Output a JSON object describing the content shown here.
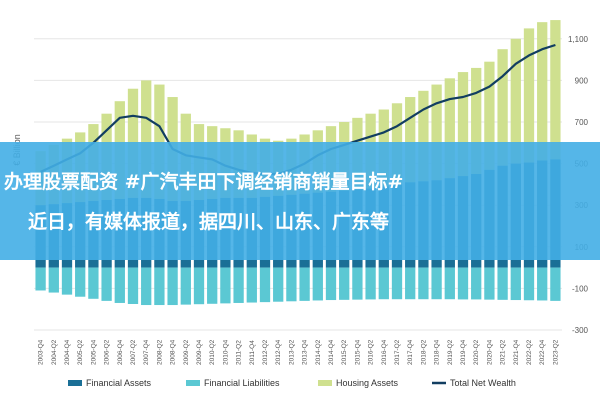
{
  "colors": {
    "financial_assets": "#1a6f96",
    "financial_liabilities": "#5bc8d3",
    "housing_assets": "#cfe08f",
    "net_wealth": "#123e61",
    "banner": "#43aee6",
    "grid": "#e6e6e6"
  },
  "banner": {
    "line1": "办理股票配资 #广汽丰田下调经销商销量目标#",
    "line2": "近日，有媒体报道，据四川、山东、广东等"
  },
  "chart_data": {
    "type": "bar",
    "ylabel": "€ Billion",
    "ylim": [
      -300,
      1200
    ],
    "yticks": [
      -300,
      -100,
      100,
      300,
      500,
      700,
      900,
      1100
    ],
    "ytick_labels": [
      "-300",
      "-100",
      "100",
      "300",
      "500",
      "700",
      "900",
      "1,100"
    ],
    "x_tick_labels": [
      "2003-Q4",
      "2004-Q2",
      "2004-Q4",
      "2005-Q2",
      "2005-Q4",
      "2006-Q2",
      "2006-Q4",
      "2007-Q2",
      "2007-Q4",
      "2008-Q2",
      "2008-Q4",
      "2009-Q2",
      "2009-Q4",
      "2010-Q2",
      "2010-Q4",
      "2011-Q2",
      "2011-Q4",
      "2012-Q2",
      "2012-Q4",
      "2013-Q2",
      "2013-Q4",
      "2014-Q2",
      "2014-Q4",
      "2015-Q2",
      "2015-Q4",
      "2016-Q2",
      "2016-Q4",
      "2017-Q2",
      "2017-Q4",
      "2018-Q2",
      "2018-Q4",
      "2019-Q2",
      "2019-Q4",
      "2020-Q2",
      "2020-Q4",
      "2021-Q2",
      "2021-Q4",
      "2022-Q2",
      "2022-Q4",
      "2023-Q2"
    ],
    "legend": [
      {
        "key": "financial_assets",
        "label": "Financial Assets",
        "kind": "box"
      },
      {
        "key": "financial_liabilities",
        "label": "Financial Liabilities",
        "kind": "box"
      },
      {
        "key": "housing_assets",
        "label": "Housing Assets",
        "kind": "box"
      },
      {
        "key": "net_wealth",
        "label": "Total Net Wealth",
        "kind": "line"
      }
    ],
    "legend_position": "bottom",
    "grid": true,
    "x": [
      "2003-Q4",
      "2004-Q2",
      "2004-Q4",
      "2005-Q2",
      "2005-Q4",
      "2006-Q2",
      "2006-Q4",
      "2007-Q2",
      "2007-Q4",
      "2008-Q2",
      "2008-Q4",
      "2009-Q2",
      "2009-Q4",
      "2010-Q2",
      "2010-Q4",
      "2011-Q2",
      "2011-Q4",
      "2012-Q2",
      "2012-Q4",
      "2013-Q2",
      "2013-Q4",
      "2014-Q2",
      "2014-Q4",
      "2015-Q2",
      "2015-Q4",
      "2016-Q2",
      "2016-Q4",
      "2017-Q2",
      "2017-Q4",
      "2018-Q2",
      "2018-Q4",
      "2019-Q2",
      "2019-Q4",
      "2020-Q2",
      "2020-Q4",
      "2021-Q2",
      "2021-Q4",
      "2022-Q2",
      "2022-Q4",
      "2023-Q2"
    ],
    "series": [
      {
        "name": "Financial Assets",
        "key": "financial_assets",
        "kind": "bar",
        "values": [
          300,
          305,
          310,
          315,
          320,
          325,
          330,
          335,
          335,
          330,
          320,
          320,
          325,
          330,
          335,
          335,
          335,
          340,
          345,
          350,
          355,
          360,
          365,
          370,
          375,
          380,
          390,
          400,
          410,
          415,
          420,
          430,
          440,
          450,
          470,
          490,
          500,
          505,
          515,
          520
        ]
      },
      {
        "name": "Financial Liabilities",
        "key": "financial_liabilities",
        "kind": "bar",
        "values": [
          -110,
          -120,
          -130,
          -140,
          -150,
          -160,
          -170,
          -175,
          -180,
          -180,
          -180,
          -178,
          -176,
          -174,
          -172,
          -170,
          -168,
          -166,
          -164,
          -162,
          -160,
          -158,
          -156,
          -155,
          -154,
          -153,
          -152,
          -152,
          -152,
          -152,
          -152,
          -152,
          -153,
          -153,
          -154,
          -155,
          -156,
          -157,
          -158,
          -160
        ]
      },
      {
        "name": "Housing Assets",
        "key": "financial_assets_housing",
        "kind": "bar",
        "values": [
          560,
          590,
          620,
          650,
          690,
          740,
          800,
          860,
          900,
          880,
          820,
          740,
          690,
          680,
          670,
          660,
          640,
          620,
          610,
          620,
          640,
          660,
          680,
          700,
          720,
          740,
          760,
          790,
          820,
          850,
          880,
          910,
          940,
          960,
          990,
          1050,
          1100,
          1150,
          1180,
          1190
        ]
      },
      {
        "name": "Total Net Wealth",
        "key": "net_wealth",
        "kind": "line",
        "values": [
          460,
          490,
          520,
          550,
          600,
          660,
          720,
          730,
          720,
          680,
          570,
          540,
          530,
          520,
          490,
          470,
          455,
          450,
          450,
          470,
          500,
          540,
          570,
          590,
          610,
          630,
          650,
          680,
          720,
          760,
          790,
          810,
          820,
          840,
          870,
          920,
          980,
          1020,
          1050,
          1070
        ]
      }
    ]
  }
}
